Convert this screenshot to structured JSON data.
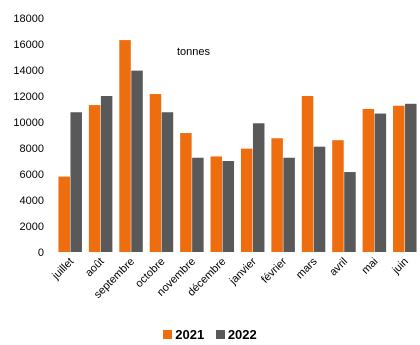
{
  "chart_data": {
    "type": "bar",
    "categories": [
      "juillet",
      "août",
      "septembre",
      "octobre",
      "novembre",
      "décembre",
      "janvier",
      "février",
      "mars",
      "avril",
      "mai",
      "juin"
    ],
    "series": [
      {
        "name": "2021",
        "color": "#ED6D0F",
        "values": [
          5800,
          11300,
          16300,
          12150,
          9150,
          7350,
          7950,
          8750,
          12000,
          8600,
          11000,
          11250
        ]
      },
      {
        "name": "2022",
        "color": "#595959",
        "values": [
          10750,
          12000,
          13950,
          10750,
          7250,
          7000,
          9900,
          7250,
          8100,
          6150,
          10650,
          11400
        ]
      }
    ],
    "annotation": "tonnes",
    "ylim": [
      0,
      18000
    ],
    "yticks": [
      0,
      2000,
      4000,
      6000,
      8000,
      10000,
      12000,
      14000,
      16000,
      18000
    ],
    "grid": false,
    "legend_position": "bottom"
  }
}
